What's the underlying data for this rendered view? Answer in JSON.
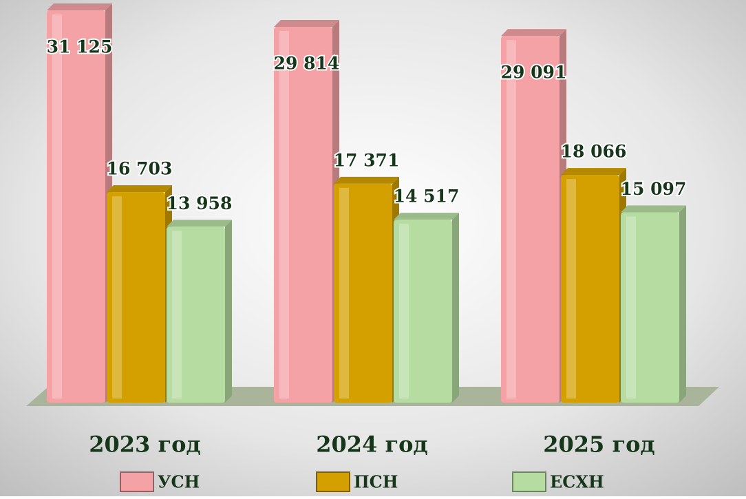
{
  "chart_data": {
    "type": "bar",
    "categories": [
      "2023 год",
      "2024 год",
      "2025 год"
    ],
    "series": [
      {
        "name": "УСН",
        "color": "#f4a2a6",
        "values": [
          31125,
          29814,
          29091
        ],
        "value_labels": [
          "31 125",
          "29 814",
          "29 091"
        ]
      },
      {
        "name": "ПСН",
        "color": "#d4a000",
        "values": [
          16703,
          17371,
          18066
        ],
        "value_labels": [
          "16 703",
          "17 371",
          "18 066"
        ]
      },
      {
        "name": "ЕСХН",
        "color": "#b6dca2",
        "values": [
          13958,
          14517,
          15097
        ],
        "value_labels": [
          "13 958",
          "14 517",
          "15 097"
        ]
      }
    ]
  }
}
